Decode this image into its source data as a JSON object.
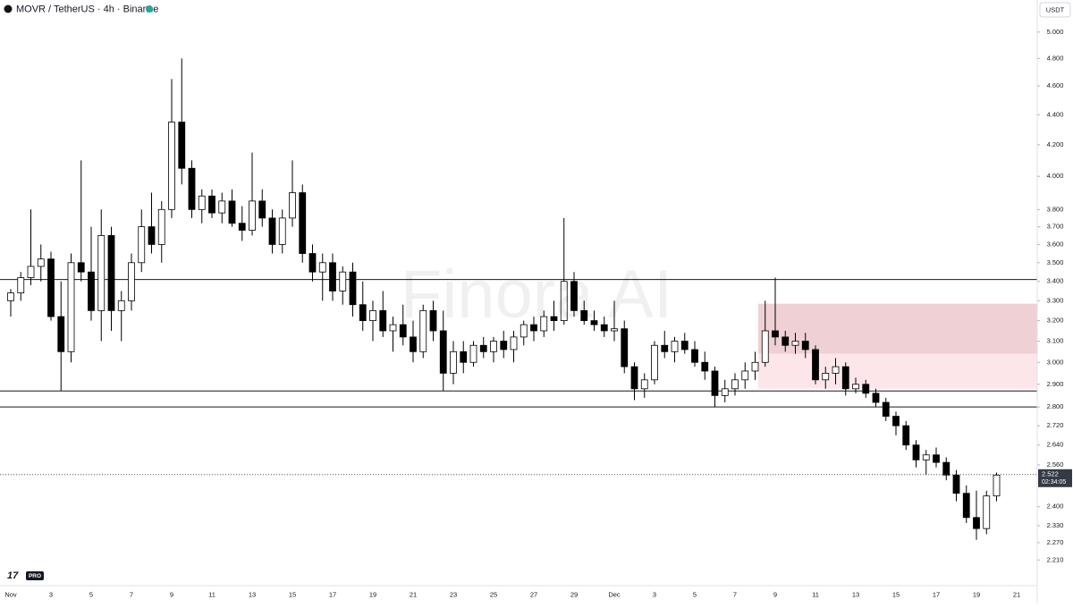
{
  "chart_data": {
    "type": "candlestick",
    "title": "MOVR / TetherUS · 4h · Binance",
    "currency": "USDT",
    "watermark": "Finora AI",
    "badge": "PRO",
    "log_scale": true,
    "up_color": "#ffffff",
    "down_color": "#000000",
    "categories": [
      "Nov",
      null,
      null,
      null,
      "3",
      null,
      null,
      null,
      "5",
      null,
      null,
      null,
      "7",
      null,
      null,
      null,
      "9",
      null,
      null,
      null,
      "11",
      null,
      null,
      null,
      "13",
      null,
      null,
      null,
      "15",
      null,
      null,
      null,
      "17",
      null,
      null,
      null,
      "19",
      null,
      null,
      null,
      "21",
      null,
      null,
      null,
      "23",
      null,
      null,
      null,
      "25",
      null,
      null,
      null,
      "27",
      null,
      null,
      null,
      "29",
      null,
      null,
      null,
      "Dec",
      null,
      null,
      null,
      "3",
      null,
      null,
      null,
      "5",
      null,
      null,
      null,
      "7",
      null,
      null,
      null,
      "9",
      null,
      null,
      null,
      "11",
      null,
      null,
      null,
      "13",
      null,
      null,
      null,
      "15",
      null,
      null,
      null,
      "17",
      null,
      null,
      null,
      "19",
      null,
      null,
      null,
      "21"
    ],
    "open": [
      3.3,
      3.34,
      3.42,
      3.48,
      3.52,
      3.22,
      3.05,
      3.5,
      3.45,
      3.25,
      3.65,
      3.25,
      3.3,
      3.5,
      3.7,
      3.6,
      3.8,
      4.35,
      4.05,
      3.8,
      3.88,
      3.78,
      3.85,
      3.72,
      3.68,
      3.85,
      3.75,
      3.6,
      3.75,
      3.9,
      3.55,
      3.45,
      3.5,
      3.35,
      3.45,
      3.28,
      3.2,
      3.25,
      3.15,
      3.18,
      3.12,
      3.05,
      3.25,
      3.15,
      2.95,
      3.05,
      3.0,
      3.08,
      3.05,
      3.1,
      3.06,
      3.12,
      3.18,
      3.15,
      3.22,
      3.2,
      3.4,
      3.25,
      3.2,
      3.18,
      3.15,
      3.16,
      2.98,
      2.88,
      2.92,
      3.08,
      3.05,
      3.1,
      3.06,
      3.0,
      2.96,
      2.85,
      2.88,
      2.92,
      2.96,
      3.0,
      3.15,
      3.12,
      3.08,
      3.1,
      3.06,
      2.92,
      2.95,
      2.98,
      2.88,
      2.9,
      2.86,
      2.82,
      2.76,
      2.72,
      2.64,
      2.58,
      2.6,
      2.57,
      2.52,
      2.45,
      2.36,
      2.32,
      2.44,
      null,
      null
    ],
    "high": [
      3.36,
      3.45,
      3.8,
      3.6,
      3.56,
      3.4,
      3.55,
      4.1,
      3.7,
      3.8,
      3.7,
      3.35,
      3.55,
      3.8,
      3.9,
      3.85,
      4.65,
      4.8,
      4.1,
      3.92,
      3.92,
      3.9,
      3.92,
      3.82,
      4.15,
      3.92,
      3.8,
      3.8,
      4.1,
      3.95,
      3.6,
      3.55,
      3.55,
      3.48,
      3.5,
      3.4,
      3.3,
      3.35,
      3.22,
      3.28,
      3.2,
      3.28,
      3.3,
      3.25,
      3.1,
      3.1,
      3.1,
      3.12,
      3.12,
      3.15,
      3.15,
      3.2,
      3.22,
      3.25,
      3.3,
      3.75,
      3.45,
      3.3,
      3.25,
      3.22,
      3.3,
      3.2,
      3.0,
      2.95,
      3.1,
      3.15,
      3.12,
      3.14,
      3.1,
      3.05,
      2.98,
      2.92,
      2.95,
      3.0,
      3.05,
      3.3,
      3.42,
      3.15,
      3.14,
      3.14,
      3.08,
      2.98,
      3.02,
      3.0,
      2.93,
      2.92,
      2.88,
      2.84,
      2.78,
      2.74,
      2.66,
      2.62,
      2.63,
      2.59,
      2.54,
      2.48,
      2.46,
      2.46,
      2.53,
      null,
      null
    ],
    "low": [
      3.22,
      3.3,
      3.38,
      3.4,
      3.2,
      2.87,
      3.0,
      3.4,
      3.2,
      3.1,
      3.15,
      3.1,
      3.25,
      3.45,
      3.55,
      3.5,
      3.75,
      3.95,
      3.75,
      3.72,
      3.75,
      3.72,
      3.7,
      3.62,
      3.65,
      3.7,
      3.55,
      3.55,
      3.7,
      3.5,
      3.4,
      3.3,
      3.3,
      3.28,
      3.22,
      3.15,
      3.1,
      3.12,
      3.05,
      3.08,
      3.0,
      3.02,
      3.1,
      2.87,
      2.9,
      2.95,
      2.98,
      3.02,
      3.0,
      3.02,
      3.0,
      3.08,
      3.1,
      3.12,
      3.15,
      3.18,
      3.22,
      3.18,
      3.15,
      3.12,
      3.1,
      2.95,
      2.83,
      2.84,
      2.9,
      3.02,
      3.0,
      3.04,
      2.98,
      2.92,
      2.8,
      2.82,
      2.85,
      2.88,
      2.92,
      2.98,
      3.08,
      3.05,
      3.04,
      3.02,
      2.9,
      2.88,
      2.9,
      2.85,
      2.86,
      2.84,
      2.8,
      2.74,
      2.68,
      2.62,
      2.55,
      2.52,
      2.55,
      2.5,
      2.42,
      2.34,
      2.28,
      2.3,
      2.42,
      null,
      null
    ],
    "close": [
      3.34,
      3.42,
      3.48,
      3.52,
      3.22,
      3.05,
      3.5,
      3.45,
      3.25,
      3.65,
      3.25,
      3.3,
      3.5,
      3.7,
      3.6,
      3.8,
      4.35,
      4.05,
      3.8,
      3.88,
      3.78,
      3.85,
      3.72,
      3.68,
      3.85,
      3.75,
      3.6,
      3.75,
      3.9,
      3.55,
      3.45,
      3.5,
      3.35,
      3.45,
      3.28,
      3.2,
      3.25,
      3.15,
      3.18,
      3.12,
      3.05,
      3.25,
      3.15,
      2.95,
      3.05,
      3.0,
      3.08,
      3.05,
      3.1,
      3.06,
      3.12,
      3.18,
      3.15,
      3.22,
      3.2,
      3.4,
      3.25,
      3.2,
      3.18,
      3.15,
      3.16,
      2.98,
      2.88,
      2.92,
      3.08,
      3.05,
      3.1,
      3.06,
      3.0,
      2.96,
      2.85,
      2.88,
      2.92,
      2.96,
      3.0,
      3.15,
      3.12,
      3.08,
      3.1,
      3.06,
      2.92,
      2.95,
      2.98,
      2.88,
      2.9,
      2.86,
      2.82,
      2.76,
      2.72,
      2.64,
      2.58,
      2.6,
      2.57,
      2.52,
      2.45,
      2.36,
      2.32,
      2.44,
      2.52,
      null,
      null
    ],
    "ylim": [
      2.124,
      5.254
    ],
    "yticks": [
      {
        "value": 2.21,
        "label": "2.210"
      },
      {
        "value": 2.27,
        "label": "2.270"
      },
      {
        "value": 2.33,
        "label": "2.330"
      },
      {
        "value": 2.4,
        "label": "2.400"
      },
      {
        "value": 2.56,
        "label": "2.560"
      },
      {
        "value": 2.64,
        "label": "2.640"
      },
      {
        "value": 2.72,
        "label": "2.720"
      },
      {
        "value": 2.8,
        "label": "2.800"
      },
      {
        "value": 2.9,
        "label": "2.900"
      },
      {
        "value": 3,
        "label": "3.000"
      },
      {
        "value": 3.1,
        "label": "3.100"
      },
      {
        "value": 3.2,
        "label": "3.200"
      },
      {
        "value": 3.3,
        "label": "3.300"
      },
      {
        "value": 3.4,
        "label": "3.400"
      },
      {
        "value": 3.5,
        "label": "3.500"
      },
      {
        "value": 3.6,
        "label": "3.600"
      },
      {
        "value": 3.7,
        "label": "3.700"
      },
      {
        "value": 3.8,
        "label": "3.800"
      },
      {
        "value": 4,
        "label": "4.000"
      },
      {
        "value": 4.2,
        "label": "4.200"
      },
      {
        "value": 4.4,
        "label": "4.400"
      },
      {
        "value": 4.6,
        "label": "4.600"
      },
      {
        "value": 4.8,
        "label": "4.800"
      },
      {
        "value": 5,
        "label": "5.000"
      }
    ],
    "levels": [
      3.41,
      2.87,
      2.8
    ],
    "zones": [
      {
        "top": 3.285,
        "bottom": 3.04,
        "color": "#efd0d5"
      },
      {
        "top": 3.04,
        "bottom": 2.88,
        "color": "#fde6ea"
      }
    ],
    "last_price": {
      "value": 2.522,
      "label": "2.522",
      "countdown": "02:34:05"
    }
  }
}
